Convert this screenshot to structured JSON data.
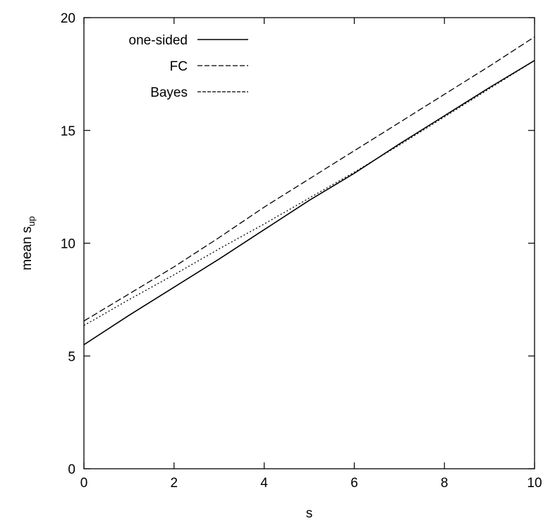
{
  "chart_data": {
    "type": "line",
    "title": "",
    "xlabel": "s",
    "ylabel": {
      "main": "mean s",
      "sub": "up"
    },
    "xlim": [
      0,
      10
    ],
    "ylim": [
      0,
      20
    ],
    "x_ticks": [
      "0",
      "2",
      "4",
      "6",
      "8",
      "10"
    ],
    "y_ticks": [
      "0",
      "5",
      "10",
      "15",
      "20"
    ],
    "grid": false,
    "legend_position": "top-left",
    "series": [
      {
        "name": "one-sided",
        "dash": "solid",
        "x": [
          0,
          1,
          2,
          3,
          4,
          5,
          6,
          7,
          8,
          9,
          10
        ],
        "y": [
          5.5,
          6.8,
          8.05,
          9.3,
          10.6,
          11.9,
          13.1,
          14.4,
          15.65,
          16.9,
          18.1
        ]
      },
      {
        "name": "FC",
        "dash": "dashed",
        "x": [
          0,
          1,
          2,
          3,
          4,
          5,
          6,
          7,
          8,
          9,
          10
        ],
        "y": [
          6.55,
          7.75,
          8.95,
          10.25,
          11.6,
          12.85,
          14.1,
          15.35,
          16.6,
          17.85,
          19.15
        ]
      },
      {
        "name": "Bayes",
        "dash": "dotted",
        "x": [
          0,
          1,
          2,
          3,
          4,
          5,
          6,
          7,
          8,
          9,
          10
        ],
        "y": [
          6.35,
          7.5,
          8.6,
          9.75,
          10.85,
          12.0,
          13.15,
          14.35,
          15.6,
          16.85,
          18.1
        ]
      }
    ]
  }
}
